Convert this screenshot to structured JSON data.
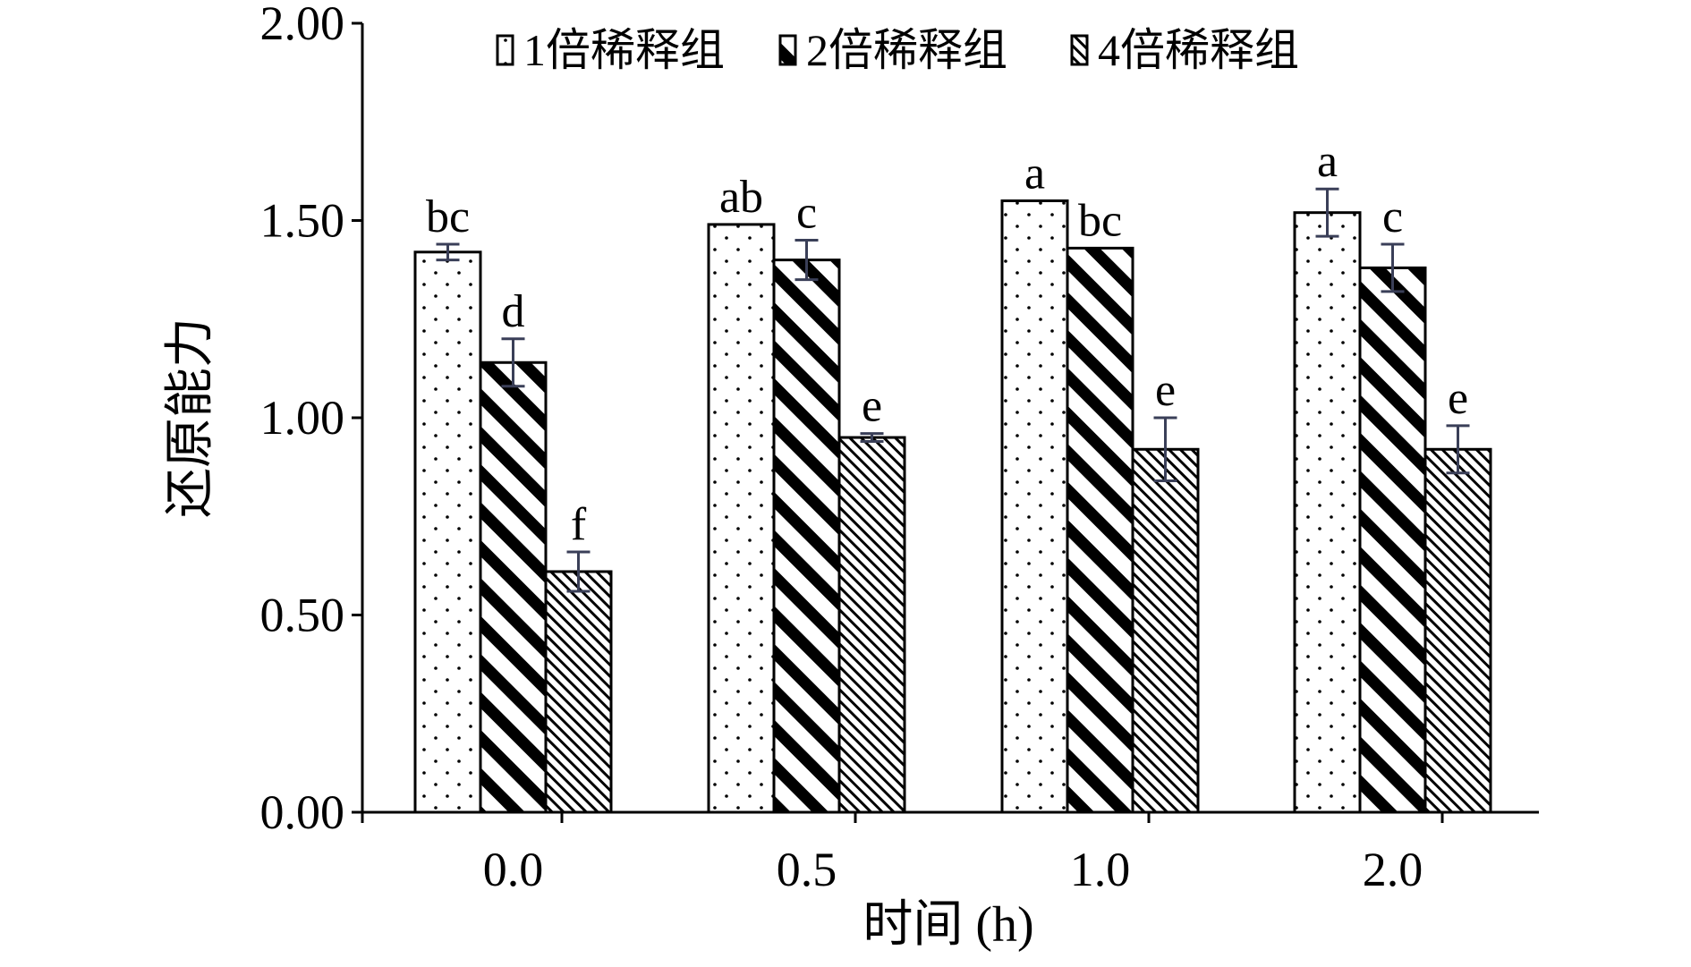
{
  "chart_data": {
    "type": "bar",
    "title": "",
    "xlabel": "时间 (h)",
    "ylabel": "还原能力",
    "ylim": [
      0,
      2
    ],
    "yticks": [
      "0.00",
      "0.50",
      "1.00",
      "1.50",
      "2.00"
    ],
    "categories": [
      "0.0",
      "0.5",
      "1.0",
      "2.0"
    ],
    "legend_position": "top",
    "grid": false,
    "series": [
      {
        "name": "1倍稀释组",
        "pattern": "dots",
        "values": [
          1.42,
          1.49,
          1.55,
          1.52
        ],
        "errors": [
          0.02,
          0.0,
          0.0,
          0.06
        ],
        "labels": [
          "bc",
          "ab",
          "a",
          "a"
        ]
      },
      {
        "name": "2倍稀释组",
        "pattern": "wide-diagonal",
        "values": [
          1.14,
          1.4,
          1.43,
          1.38
        ],
        "errors": [
          0.06,
          0.05,
          0.0,
          0.06
        ],
        "labels": [
          "d",
          "c",
          "bc",
          "c"
        ]
      },
      {
        "name": "4倍稀释组",
        "pattern": "fine-diagonal",
        "values": [
          0.61,
          0.95,
          0.92,
          0.92
        ],
        "errors": [
          0.05,
          0.01,
          0.08,
          0.06
        ],
        "labels": [
          "f",
          "e",
          "e",
          "e"
        ]
      }
    ]
  }
}
